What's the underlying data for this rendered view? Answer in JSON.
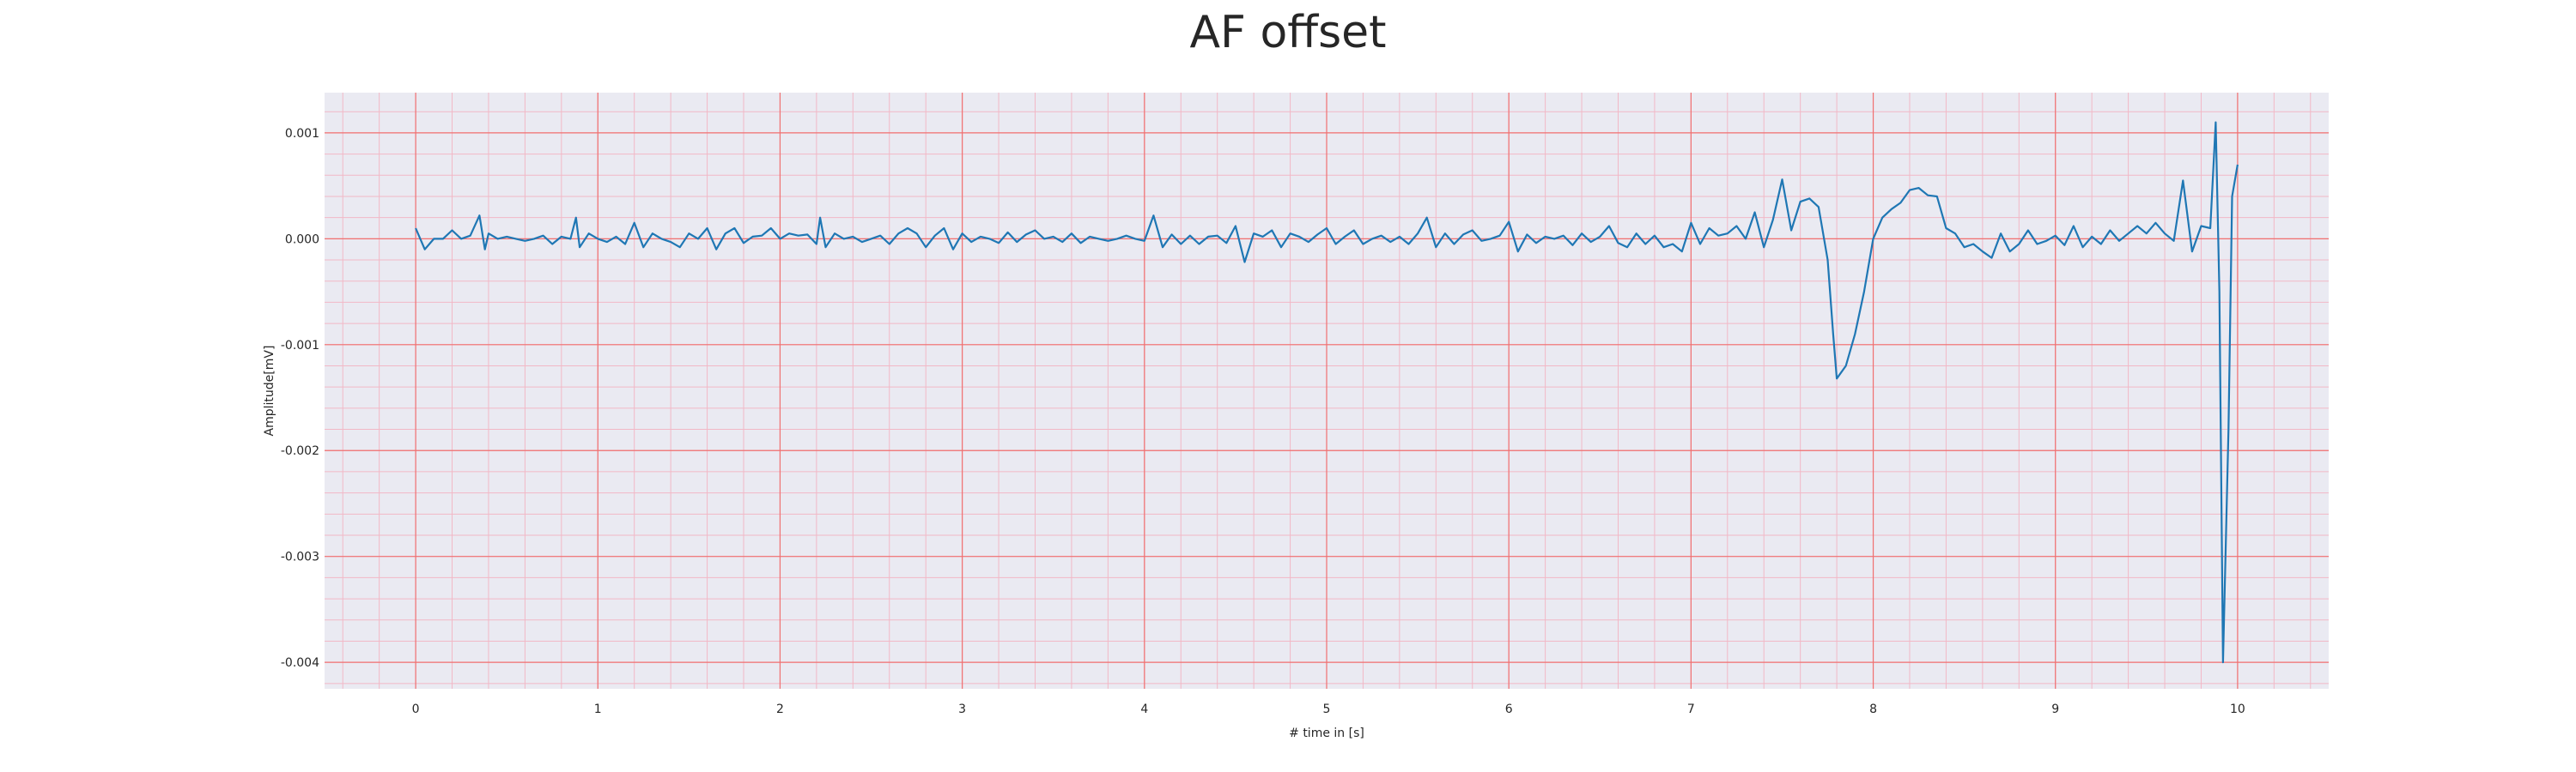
{
  "chart_data": {
    "type": "line",
    "title": "AF offset",
    "xlabel": "# time in [s]",
    "ylabel": "Amplitude[mV]",
    "xlim": [
      -0.5,
      10.5
    ],
    "ylim": [
      -0.00425,
      0.00138
    ],
    "x_ticks": [
      "0",
      "1",
      "2",
      "3",
      "4",
      "5",
      "6",
      "7",
      "8",
      "9",
      "10"
    ],
    "y_ticks": [
      "0.001",
      "0.000",
      "-0.001",
      "-0.002",
      "-0.003",
      "-0.004"
    ],
    "grid": true,
    "legend": "none",
    "colors": {
      "line": "#1f77b4",
      "plot_bg": "#eaeaf2",
      "major_grid": "#f07070",
      "minor_grid": "#f2b8c6"
    },
    "series": [
      {
        "x": [
          0,
          0.05,
          0.1,
          0.15,
          0.2,
          0.25,
          0.3,
          0.35,
          0.38,
          0.4,
          0.45,
          0.5,
          0.55,
          0.6,
          0.65,
          0.7,
          0.75,
          0.8,
          0.85,
          0.88,
          0.9,
          0.95,
          1,
          1.05,
          1.1,
          1.15,
          1.2,
          1.25,
          1.3,
          1.35,
          1.4,
          1.45,
          1.5,
          1.55,
          1.6,
          1.65,
          1.7,
          1.75,
          1.8,
          1.85,
          1.9,
          1.95,
          2,
          2.05,
          2.1,
          2.15,
          2.2,
          2.22,
          2.25,
          2.3,
          2.35,
          2.4,
          2.45,
          2.5,
          2.55,
          2.6,
          2.65,
          2.7,
          2.75,
          2.8,
          2.85,
          2.9,
          2.95,
          3,
          3.05,
          3.1,
          3.15,
          3.2,
          3.25,
          3.3,
          3.35,
          3.4,
          3.45,
          3.5,
          3.55,
          3.6,
          3.65,
          3.7,
          3.75,
          3.8,
          3.85,
          3.9,
          3.95,
          4,
          4.05,
          4.1,
          4.15,
          4.2,
          4.25,
          4.3,
          4.35,
          4.4,
          4.45,
          4.5,
          4.55,
          4.6,
          4.65,
          4.7,
          4.75,
          4.8,
          4.85,
          4.9,
          4.95,
          5,
          5.05,
          5.1,
          5.15,
          5.2,
          5.25,
          5.3,
          5.35,
          5.4,
          5.45,
          5.5,
          5.55,
          5.6,
          5.65,
          5.7,
          5.75,
          5.8,
          5.85,
          5.9,
          5.95,
          6,
          6.05,
          6.1,
          6.15,
          6.2,
          6.25,
          6.3,
          6.35,
          6.4,
          6.45,
          6.5,
          6.55,
          6.6,
          6.65,
          6.7,
          6.75,
          6.8,
          6.85,
          6.9,
          6.95,
          7,
          7.05,
          7.1,
          7.15,
          7.2,
          7.25,
          7.3,
          7.35,
          7.4,
          7.45,
          7.5,
          7.55,
          7.6,
          7.65,
          7.7,
          7.75,
          7.78,
          7.8,
          7.85,
          7.9,
          7.95,
          8,
          8.05,
          8.1,
          8.15,
          8.2,
          8.25,
          8.3,
          8.35,
          8.4,
          8.45,
          8.5,
          8.55,
          8.6,
          8.65,
          8.7,
          8.75,
          8.8,
          8.85,
          8.9,
          8.95,
          9,
          9.05,
          9.1,
          9.15,
          9.2,
          9.25,
          9.3,
          9.35,
          9.4,
          9.45,
          9.5,
          9.55,
          9.6,
          9.65,
          9.7,
          9.75,
          9.8,
          9.85,
          9.88,
          9.9,
          9.92,
          9.95,
          9.97,
          10
        ],
        "y": [
          0.0001,
          -0.0001,
          0,
          0,
          8e-05,
          0,
          3e-05,
          0.00022,
          -0.0001,
          5e-05,
          0,
          2e-05,
          0,
          -2e-05,
          0,
          3e-05,
          -5e-05,
          2e-05,
          0,
          0.0002,
          -8e-05,
          5e-05,
          0,
          -3e-05,
          2e-05,
          -5e-05,
          0.00015,
          -8e-05,
          5e-05,
          0,
          -3e-05,
          -8e-05,
          5e-05,
          0,
          0.0001,
          -0.0001,
          5e-05,
          0.0001,
          -4e-05,
          2e-05,
          3e-05,
          0.0001,
          0,
          5e-05,
          3e-05,
          4e-05,
          -5e-05,
          0.0002,
          -8e-05,
          5e-05,
          0,
          2e-05,
          -3e-05,
          0,
          3e-05,
          -5e-05,
          5e-05,
          0.0001,
          5e-05,
          -8e-05,
          3e-05,
          0.0001,
          -0.0001,
          5e-05,
          -3e-05,
          2e-05,
          0,
          -4e-05,
          6e-05,
          -3e-05,
          4e-05,
          8e-05,
          0,
          2e-05,
          -3e-05,
          5e-05,
          -4e-05,
          2e-05,
          0,
          -2e-05,
          0,
          3e-05,
          0,
          -2e-05,
          0.00022,
          -8e-05,
          4e-05,
          -5e-05,
          3e-05,
          -5e-05,
          2e-05,
          3e-05,
          -4e-05,
          0.00012,
          -0.00022,
          5e-05,
          2e-05,
          8e-05,
          -8e-05,
          5e-05,
          2e-05,
          -3e-05,
          4e-05,
          0.0001,
          -5e-05,
          2e-05,
          8e-05,
          -5e-05,
          0,
          3e-05,
          -3e-05,
          2e-05,
          -5e-05,
          5e-05,
          0.0002,
          -8e-05,
          5e-05,
          -5e-05,
          4e-05,
          8e-05,
          -2e-05,
          0,
          3e-05,
          0.00016,
          -0.00012,
          4e-05,
          -4e-05,
          2e-05,
          0,
          3e-05,
          -6e-05,
          5e-05,
          -3e-05,
          2e-05,
          0.00012,
          -4e-05,
          -8e-05,
          5e-05,
          -5e-05,
          3e-05,
          -8e-05,
          -5e-05,
          -0.00012,
          0.00015,
          -5e-05,
          0.0001,
          3e-05,
          5e-05,
          0.00012,
          0,
          0.00025,
          -8e-05,
          0.00018,
          0.00056,
          8e-05,
          0.00035,
          0.00038,
          0.0003,
          -0.0002,
          -0.0009,
          -0.00132,
          -0.0012,
          -0.0009,
          -0.0005,
          0,
          0.0002,
          0.00028,
          0.00034,
          0.00046,
          0.00048,
          0.00041,
          0.0004,
          0.0001,
          5e-05,
          -8e-05,
          -5e-05,
          -0.00012,
          -0.00018,
          5e-05,
          -0.00012,
          -5e-05,
          8e-05,
          -5e-05,
          -2e-05,
          3e-05,
          -6e-05,
          0.00012,
          -8e-05,
          2e-05,
          -5e-05,
          8e-05,
          -2e-05,
          5e-05,
          0.00012,
          5e-05,
          0.00015,
          5e-05,
          -2e-05,
          0.00055,
          -0.00012,
          0.00012,
          0.0001,
          0.0011,
          -0.0005,
          -0.004,
          -0.0018,
          0.0004,
          0.0007
        ]
      }
    ]
  }
}
